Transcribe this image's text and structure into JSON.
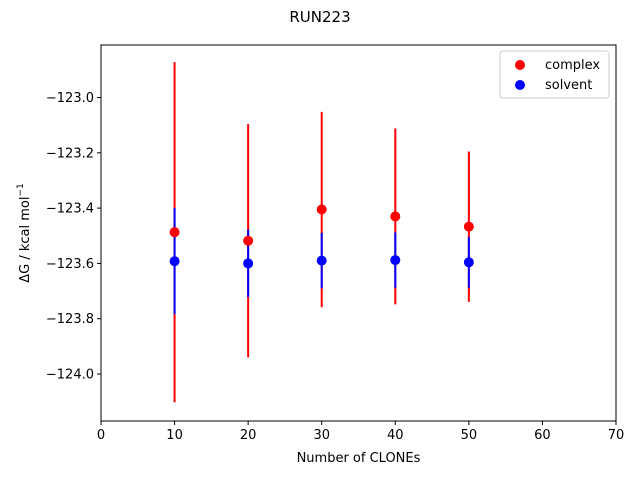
{
  "chart_data": {
    "type": "scatter",
    "title": "RUN223",
    "xlabel": "Number of CLONEs",
    "ylabel_main": "ΔG / kcal mol",
    "ylabel_sup": "−1",
    "xlim": [
      0,
      70
    ],
    "ylim": [
      -124.17,
      -122.81
    ],
    "xticks": [
      0,
      10,
      20,
      30,
      40,
      50,
      60,
      70
    ],
    "xtick_labels": [
      "0",
      "10",
      "20",
      "30",
      "40",
      "50",
      "60",
      "70"
    ],
    "yticks": [
      -124.0,
      -123.8,
      -123.6,
      -123.4,
      -123.2,
      -123.0
    ],
    "ytick_labels": [
      "−124.0",
      "−123.8",
      "−123.6",
      "−123.4",
      "−123.2",
      "−123.0"
    ],
    "grid": false,
    "legend_position": "top-right",
    "series": [
      {
        "name": "complex",
        "color": "#ff0000",
        "x": [
          10,
          20,
          30,
          40,
          50
        ],
        "y": [
          -123.487,
          -123.518,
          -123.405,
          -123.43,
          -123.467
        ],
        "yerr": [
          0.615,
          0.422,
          0.353,
          0.318,
          0.272
        ]
      },
      {
        "name": "solvent",
        "color": "#0000ff",
        "x": [
          10,
          20,
          30,
          40,
          50
        ],
        "y": [
          -123.592,
          -123.6,
          -123.59,
          -123.588,
          -123.596
        ],
        "yerr": [
          0.192,
          0.122,
          0.1,
          0.1,
          0.092
        ]
      }
    ]
  }
}
